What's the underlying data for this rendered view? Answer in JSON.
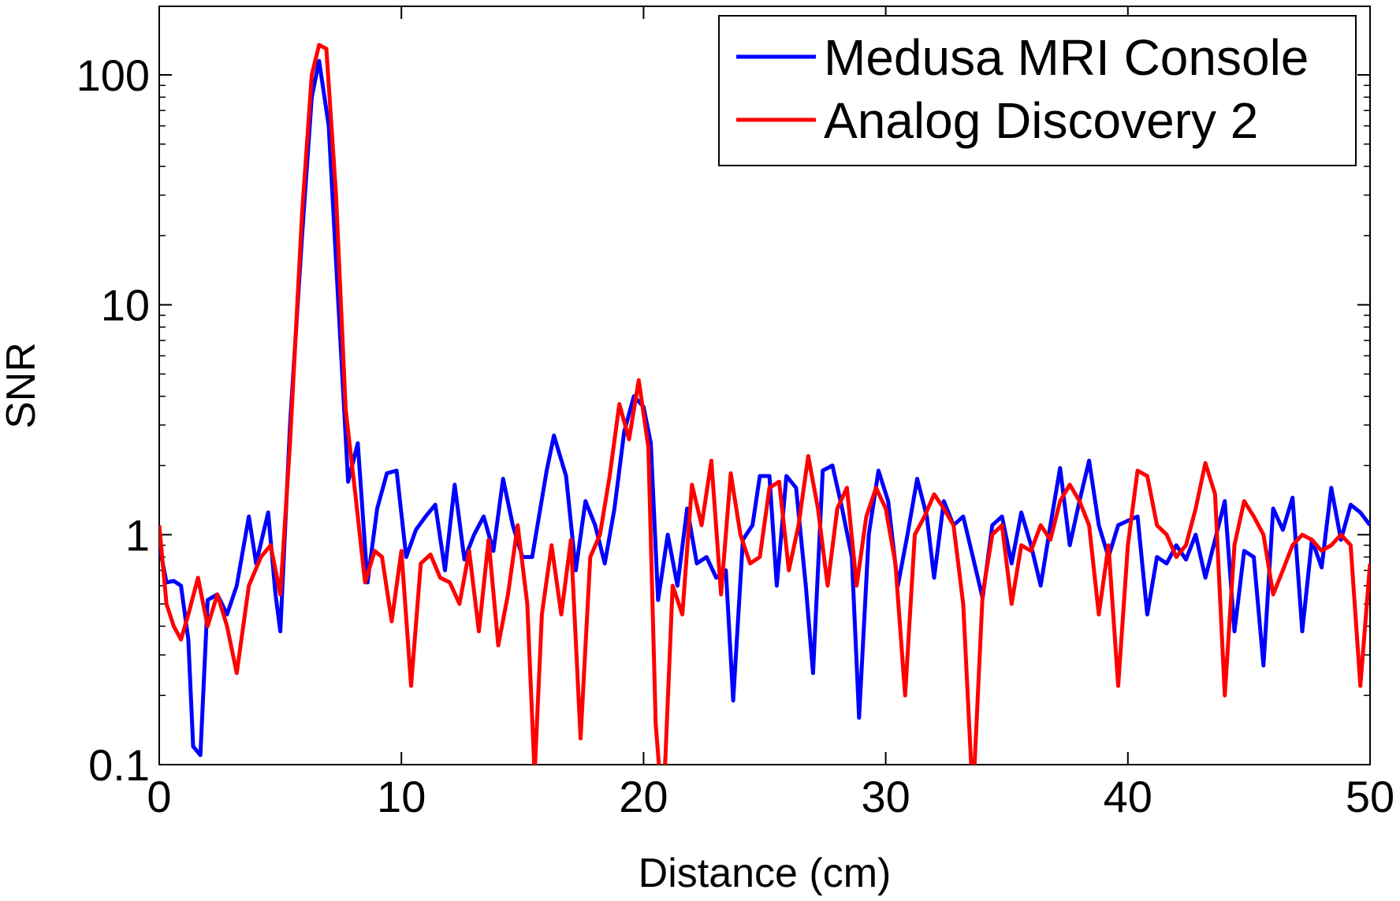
{
  "chart_data": {
    "type": "line",
    "xlabel": "Distance (cm)",
    "ylabel": "SNR",
    "xlim": [
      0,
      50
    ],
    "ylim": [
      0.1,
      200
    ],
    "yscale": "log",
    "xticks": [
      0,
      10,
      20,
      30,
      40,
      50
    ],
    "xtick_labels": [
      "0",
      "10",
      "20",
      "30",
      "40",
      "50"
    ],
    "yticks": [
      0.1,
      1,
      10,
      100
    ],
    "ytick_labels": [
      "0.1",
      "1",
      "10",
      "100"
    ],
    "grid": false,
    "legend": "top-right",
    "series": [
      {
        "name": "Medusa MRI Console",
        "color": "#0000ff",
        "points": [
          [
            0,
            0.9
          ],
          [
            0.3,
            0.62
          ],
          [
            0.6,
            0.63
          ],
          [
            0.9,
            0.6
          ],
          [
            1.2,
            0.35
          ],
          [
            1.4,
            0.12
          ],
          [
            1.7,
            0.11
          ],
          [
            2.0,
            0.52
          ],
          [
            2.4,
            0.55
          ],
          [
            2.8,
            0.45
          ],
          [
            3.2,
            0.6
          ],
          [
            3.7,
            1.2
          ],
          [
            4.0,
            0.75
          ],
          [
            4.5,
            1.25
          ],
          [
            4.8,
            0.55
          ],
          [
            5.0,
            0.38
          ],
          [
            5.4,
            3.0
          ],
          [
            5.9,
            20
          ],
          [
            6.3,
            80
          ],
          [
            6.6,
            115
          ],
          [
            7.0,
            60
          ],
          [
            7.4,
            10
          ],
          [
            7.8,
            1.7
          ],
          [
            8.2,
            2.5
          ],
          [
            8.6,
            0.62
          ],
          [
            9.0,
            1.3
          ],
          [
            9.4,
            1.85
          ],
          [
            9.8,
            1.9
          ],
          [
            10.2,
            0.8
          ],
          [
            10.6,
            1.05
          ],
          [
            11.0,
            1.2
          ],
          [
            11.4,
            1.35
          ],
          [
            11.8,
            0.7
          ],
          [
            12.2,
            1.65
          ],
          [
            12.6,
            0.78
          ],
          [
            13.0,
            1.0
          ],
          [
            13.4,
            1.2
          ],
          [
            13.8,
            0.85
          ],
          [
            14.2,
            1.75
          ],
          [
            14.6,
            1.1
          ],
          [
            15.0,
            0.8
          ],
          [
            15.4,
            0.8
          ],
          [
            16.0,
            1.9
          ],
          [
            16.3,
            2.7
          ],
          [
            16.8,
            1.8
          ],
          [
            17.2,
            0.7
          ],
          [
            17.6,
            1.4
          ],
          [
            18.0,
            1.1
          ],
          [
            18.4,
            0.75
          ],
          [
            18.8,
            1.3
          ],
          [
            19.2,
            2.8
          ],
          [
            19.6,
            4.0
          ],
          [
            20.0,
            3.6
          ],
          [
            20.3,
            2.5
          ],
          [
            20.6,
            0.52
          ],
          [
            21.0,
            1.0
          ],
          [
            21.4,
            0.6
          ],
          [
            21.8,
            1.3
          ],
          [
            22.2,
            0.75
          ],
          [
            22.6,
            0.8
          ],
          [
            23.0,
            0.65
          ],
          [
            23.4,
            0.7
          ],
          [
            23.7,
            0.19
          ],
          [
            24.1,
            0.95
          ],
          [
            24.5,
            1.1
          ],
          [
            24.8,
            1.8
          ],
          [
            25.2,
            1.8
          ],
          [
            25.5,
            0.6
          ],
          [
            25.9,
            1.8
          ],
          [
            26.3,
            1.6
          ],
          [
            26.7,
            0.6
          ],
          [
            27.0,
            0.25
          ],
          [
            27.4,
            1.9
          ],
          [
            27.8,
            2.0
          ],
          [
            28.2,
            1.3
          ],
          [
            28.6,
            0.8
          ],
          [
            28.9,
            0.16
          ],
          [
            29.3,
            1.0
          ],
          [
            29.7,
            1.9
          ],
          [
            30.1,
            1.4
          ],
          [
            30.5,
            0.6
          ],
          [
            30.9,
            1.0
          ],
          [
            31.3,
            1.75
          ],
          [
            31.7,
            1.2
          ],
          [
            32.0,
            0.65
          ],
          [
            32.4,
            1.4
          ],
          [
            32.8,
            1.1
          ],
          [
            33.2,
            1.2
          ],
          [
            33.6,
            0.8
          ],
          [
            34.0,
            0.53
          ],
          [
            34.4,
            1.1
          ],
          [
            34.8,
            1.2
          ],
          [
            35.2,
            0.75
          ],
          [
            35.6,
            1.25
          ],
          [
            36.0,
            0.9
          ],
          [
            36.4,
            0.6
          ],
          [
            36.8,
            1.1
          ],
          [
            37.2,
            1.95
          ],
          [
            37.6,
            0.9
          ],
          [
            38.0,
            1.4
          ],
          [
            38.4,
            2.1
          ],
          [
            38.8,
            1.1
          ],
          [
            39.2,
            0.8
          ],
          [
            39.6,
            1.1
          ],
          [
            40.0,
            1.15
          ],
          [
            40.4,
            1.2
          ],
          [
            40.8,
            0.45
          ],
          [
            41.2,
            0.8
          ],
          [
            41.6,
            0.75
          ],
          [
            42.0,
            0.9
          ],
          [
            42.4,
            0.78
          ],
          [
            42.8,
            1.0
          ],
          [
            43.2,
            0.65
          ],
          [
            43.6,
            0.95
          ],
          [
            44.0,
            1.4
          ],
          [
            44.4,
            0.38
          ],
          [
            44.8,
            0.85
          ],
          [
            45.2,
            0.8
          ],
          [
            45.6,
            0.27
          ],
          [
            46.0,
            1.3
          ],
          [
            46.4,
            1.05
          ],
          [
            46.8,
            1.45
          ],
          [
            47.2,
            0.38
          ],
          [
            47.6,
            0.95
          ],
          [
            48.0,
            0.72
          ],
          [
            48.4,
            1.6
          ],
          [
            48.8,
            0.95
          ],
          [
            49.2,
            1.35
          ],
          [
            49.6,
            1.25
          ],
          [
            50,
            1.1
          ]
        ]
      },
      {
        "name": "Analog Discovery 2",
        "color": "#ff0000",
        "points": [
          [
            0,
            1.1
          ],
          [
            0.3,
            0.5
          ],
          [
            0.6,
            0.4
          ],
          [
            0.9,
            0.35
          ],
          [
            1.2,
            0.45
          ],
          [
            1.6,
            0.65
          ],
          [
            2.0,
            0.4
          ],
          [
            2.4,
            0.55
          ],
          [
            2.8,
            0.4
          ],
          [
            3.2,
            0.25
          ],
          [
            3.7,
            0.6
          ],
          [
            4.2,
            0.8
          ],
          [
            4.6,
            0.9
          ],
          [
            5.0,
            0.55
          ],
          [
            5.4,
            2.5
          ],
          [
            5.9,
            25
          ],
          [
            6.3,
            100
          ],
          [
            6.6,
            135
          ],
          [
            6.9,
            130
          ],
          [
            7.3,
            30
          ],
          [
            7.7,
            3.5
          ],
          [
            8.1,
            1.5
          ],
          [
            8.5,
            0.62
          ],
          [
            8.9,
            0.85
          ],
          [
            9.2,
            0.8
          ],
          [
            9.6,
            0.42
          ],
          [
            10.0,
            0.85
          ],
          [
            10.4,
            0.22
          ],
          [
            10.8,
            0.75
          ],
          [
            11.2,
            0.82
          ],
          [
            11.6,
            0.65
          ],
          [
            12.0,
            0.62
          ],
          [
            12.4,
            0.5
          ],
          [
            12.8,
            0.85
          ],
          [
            13.2,
            0.38
          ],
          [
            13.6,
            0.95
          ],
          [
            14.0,
            0.33
          ],
          [
            14.4,
            0.55
          ],
          [
            14.8,
            1.1
          ],
          [
            15.2,
            0.5
          ],
          [
            15.5,
            0.09
          ],
          [
            15.8,
            0.45
          ],
          [
            16.2,
            0.9
          ],
          [
            16.6,
            0.45
          ],
          [
            17.0,
            0.95
          ],
          [
            17.4,
            0.13
          ],
          [
            17.8,
            0.8
          ],
          [
            18.2,
            1.0
          ],
          [
            18.6,
            1.8
          ],
          [
            19.0,
            3.7
          ],
          [
            19.4,
            2.6
          ],
          [
            19.8,
            4.7
          ],
          [
            20.2,
            2.4
          ],
          [
            20.5,
            0.15
          ],
          [
            20.8,
            0.06
          ],
          [
            21.2,
            0.6
          ],
          [
            21.6,
            0.45
          ],
          [
            22.0,
            1.65
          ],
          [
            22.4,
            1.1
          ],
          [
            22.8,
            2.1
          ],
          [
            23.2,
            0.55
          ],
          [
            23.6,
            1.85
          ],
          [
            24.0,
            1.0
          ],
          [
            24.4,
            0.75
          ],
          [
            24.8,
            0.8
          ],
          [
            25.2,
            1.6
          ],
          [
            25.6,
            1.7
          ],
          [
            26.0,
            0.7
          ],
          [
            26.4,
            1.1
          ],
          [
            26.8,
            2.2
          ],
          [
            27.2,
            1.3
          ],
          [
            27.6,
            0.6
          ],
          [
            28.0,
            1.3
          ],
          [
            28.4,
            1.6
          ],
          [
            28.8,
            0.6
          ],
          [
            29.2,
            1.2
          ],
          [
            29.6,
            1.6
          ],
          [
            30.0,
            1.3
          ],
          [
            30.4,
            0.75
          ],
          [
            30.8,
            0.2
          ],
          [
            31.2,
            1.0
          ],
          [
            31.6,
            1.2
          ],
          [
            32.0,
            1.5
          ],
          [
            32.4,
            1.3
          ],
          [
            32.8,
            1.1
          ],
          [
            33.2,
            0.5
          ],
          [
            33.6,
            0.07
          ],
          [
            34.0,
            0.55
          ],
          [
            34.4,
            1.0
          ],
          [
            34.8,
            1.1
          ],
          [
            35.2,
            0.5
          ],
          [
            35.6,
            0.9
          ],
          [
            36.0,
            0.85
          ],
          [
            36.4,
            1.1
          ],
          [
            36.8,
            0.95
          ],
          [
            37.2,
            1.4
          ],
          [
            37.6,
            1.65
          ],
          [
            38.0,
            1.4
          ],
          [
            38.4,
            1.1
          ],
          [
            38.8,
            0.45
          ],
          [
            39.2,
            0.9
          ],
          [
            39.6,
            0.22
          ],
          [
            40.0,
            0.9
          ],
          [
            40.4,
            1.9
          ],
          [
            40.8,
            1.8
          ],
          [
            41.2,
            1.1
          ],
          [
            41.6,
            1.0
          ],
          [
            42.0,
            0.8
          ],
          [
            42.4,
            0.9
          ],
          [
            42.8,
            1.3
          ],
          [
            43.2,
            2.05
          ],
          [
            43.6,
            1.5
          ],
          [
            44.0,
            0.2
          ],
          [
            44.4,
            0.9
          ],
          [
            44.8,
            1.4
          ],
          [
            45.2,
            1.2
          ],
          [
            45.6,
            1.0
          ],
          [
            46.0,
            0.55
          ],
          [
            46.4,
            0.7
          ],
          [
            46.8,
            0.9
          ],
          [
            47.2,
            1.0
          ],
          [
            47.6,
            0.95
          ],
          [
            48.0,
            0.85
          ],
          [
            48.4,
            0.9
          ],
          [
            48.8,
            1.0
          ],
          [
            49.2,
            0.9
          ],
          [
            49.6,
            0.22
          ],
          [
            50,
            0.75
          ]
        ]
      }
    ]
  }
}
